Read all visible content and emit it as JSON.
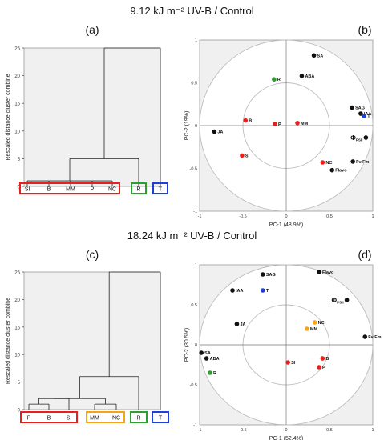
{
  "sections": [
    {
      "title": "9.12 kJ m⁻²  UV-B / Control",
      "panel_left_label": "(a)",
      "panel_right_label": "(b)"
    },
    {
      "title": "18.24 kJ m⁻²  UV-B / Control",
      "panel_left_label": "(c)",
      "panel_right_label": "(d)"
    }
  ],
  "colors": {
    "red": "#e8201c",
    "green": "#2ca02c",
    "blue": "#1f3fd6",
    "black": "#111111",
    "orange": "#f5a31a",
    "panel_bg": "#f0f0f0",
    "circle": "#bdbdbd"
  },
  "chart_data": [
    {
      "type": "dendrogram",
      "panel": "(a)",
      "ylabel": "Rescaled distance cluster combine",
      "ylim": [
        0,
        25
      ],
      "yticks": [
        0,
        5,
        10,
        15,
        20,
        25
      ],
      "leaves": [
        "SI",
        "B",
        "MM",
        "P",
        "NC",
        "R",
        "T"
      ],
      "merges": [
        {
          "left": [
            "SI",
            "B",
            "MM",
            "P",
            "NC"
          ],
          "height": 1
        },
        {
          "left": [
            "SI",
            "B",
            "MM",
            "P",
            "NC"
          ],
          "right": [
            "R"
          ],
          "height": 5
        },
        {
          "left": [
            "SI",
            "B",
            "MM",
            "P",
            "NC",
            "R"
          ],
          "right": [
            "T"
          ],
          "height": 25
        }
      ],
      "groups": [
        {
          "leaves": [
            "SI",
            "B",
            "MM",
            "P",
            "NC"
          ],
          "color": "red"
        },
        {
          "leaves": [
            "R"
          ],
          "color": "green"
        },
        {
          "leaves": [
            "T"
          ],
          "color": "blue"
        }
      ]
    },
    {
      "type": "scatter",
      "panel": "(b)",
      "xlabel": "PC-1 (48.9%)",
      "ylabel": "PC-2 (19%)",
      "xlim": [
        -1,
        1
      ],
      "ylim": [
        -1,
        1
      ],
      "xticks": [
        "-1",
        "-0.5",
        "0",
        "0.5",
        "1"
      ],
      "yticks": [
        "1",
        "0.5",
        "0",
        "-0.5",
        "-1"
      ],
      "points": [
        {
          "label": "SA",
          "x": 0.32,
          "y": 0.82,
          "color": "black"
        },
        {
          "label": "ABA",
          "x": 0.18,
          "y": 0.58,
          "color": "black"
        },
        {
          "label": "R",
          "x": -0.14,
          "y": 0.54,
          "color": "green"
        },
        {
          "label": "SAG",
          "x": 0.76,
          "y": 0.21,
          "color": "black"
        },
        {
          "label": "IAA",
          "x": 0.86,
          "y": 0.14,
          "color": "black"
        },
        {
          "label": "T",
          "x": 0.9,
          "y": 0.11,
          "color": "blue"
        },
        {
          "label": "B",
          "x": -0.47,
          "y": 0.06,
          "color": "red"
        },
        {
          "label": "P",
          "x": -0.13,
          "y": 0.02,
          "color": "red"
        },
        {
          "label": "MM",
          "x": 0.13,
          "y": 0.03,
          "color": "red"
        },
        {
          "label": "JA",
          "x": -0.83,
          "y": -0.07,
          "color": "black"
        },
        {
          "label": "ΦPSII",
          "x": 0.92,
          "y": -0.14,
          "color": "black"
        },
        {
          "label": "SI",
          "x": -0.51,
          "y": -0.35,
          "color": "red"
        },
        {
          "label": "NC",
          "x": 0.42,
          "y": -0.43,
          "color": "red"
        },
        {
          "label": "Fv/Fm",
          "x": 0.77,
          "y": -0.42,
          "color": "black"
        },
        {
          "label": "Flavo",
          "x": 0.53,
          "y": -0.52,
          "color": "black"
        }
      ]
    },
    {
      "type": "dendrogram",
      "panel": "(c)",
      "ylabel": "Rescaled distance cluster combine",
      "ylim": [
        0,
        25
      ],
      "yticks": [
        0,
        5,
        10,
        15,
        20,
        25
      ],
      "leaves": [
        "P",
        "B",
        "SI",
        "MM",
        "NC",
        "R",
        "T"
      ],
      "merges": [
        {
          "left": [
            "P"
          ],
          "right": [
            "B"
          ],
          "height": 1
        },
        {
          "left": [
            "P",
            "B"
          ],
          "right": [
            "SI"
          ],
          "height": 2
        },
        {
          "left": [
            "MM"
          ],
          "right": [
            "NC"
          ],
          "height": 1
        },
        {
          "left": [
            "P",
            "B",
            "SI"
          ],
          "right": [
            "MM",
            "NC"
          ],
          "height": 2
        },
        {
          "left": [
            "P",
            "B",
            "SI",
            "MM",
            "NC"
          ],
          "right": [
            "R"
          ],
          "height": 6
        },
        {
          "left": [
            "P",
            "B",
            "SI",
            "MM",
            "NC",
            "R"
          ],
          "right": [
            "T"
          ],
          "height": 25
        }
      ],
      "groups": [
        {
          "leaves": [
            "P",
            "B",
            "SI"
          ],
          "color": "red"
        },
        {
          "leaves": [
            "MM",
            "NC"
          ],
          "color": "orange"
        },
        {
          "leaves": [
            "R"
          ],
          "color": "green"
        },
        {
          "leaves": [
            "T"
          ],
          "color": "blue"
        }
      ]
    },
    {
      "type": "scatter",
      "panel": "(d)",
      "xlabel": "PC-1 (52.4%)",
      "ylabel": "PC-2 (30.5%)",
      "xlim": [
        -1,
        1
      ],
      "ylim": [
        -1,
        1
      ],
      "xticks": [
        "-1",
        "-0.5",
        "0",
        "0.5",
        "1"
      ],
      "yticks": [
        "1",
        "0.5",
        "0",
        "-0.5",
        "-1"
      ],
      "points": [
        {
          "label": "Flavo",
          "x": 0.38,
          "y": 0.91,
          "color": "black"
        },
        {
          "label": "SAG",
          "x": -0.27,
          "y": 0.88,
          "color": "black"
        },
        {
          "label": "IAA",
          "x": -0.62,
          "y": 0.68,
          "color": "black"
        },
        {
          "label": "T",
          "x": -0.27,
          "y": 0.68,
          "color": "blue"
        },
        {
          "label": "ΦPSII",
          "x": 0.7,
          "y": 0.56,
          "color": "black"
        },
        {
          "label": "JA",
          "x": -0.57,
          "y": 0.26,
          "color": "black"
        },
        {
          "label": "NC",
          "x": 0.33,
          "y": 0.28,
          "color": "orange"
        },
        {
          "label": "MM",
          "x": 0.24,
          "y": 0.2,
          "color": "orange"
        },
        {
          "label": "Fv/Fm",
          "x": 0.91,
          "y": 0.1,
          "color": "black"
        },
        {
          "label": "SA",
          "x": -0.98,
          "y": -0.1,
          "color": "black"
        },
        {
          "label": "ABA",
          "x": -0.92,
          "y": -0.17,
          "color": "black"
        },
        {
          "label": "R",
          "x": -0.88,
          "y": -0.35,
          "color": "green"
        },
        {
          "label": "SI",
          "x": 0.02,
          "y": -0.22,
          "color": "red"
        },
        {
          "label": "B",
          "x": 0.42,
          "y": -0.17,
          "color": "red"
        },
        {
          "label": "P",
          "x": 0.38,
          "y": -0.28,
          "color": "red"
        }
      ]
    }
  ]
}
